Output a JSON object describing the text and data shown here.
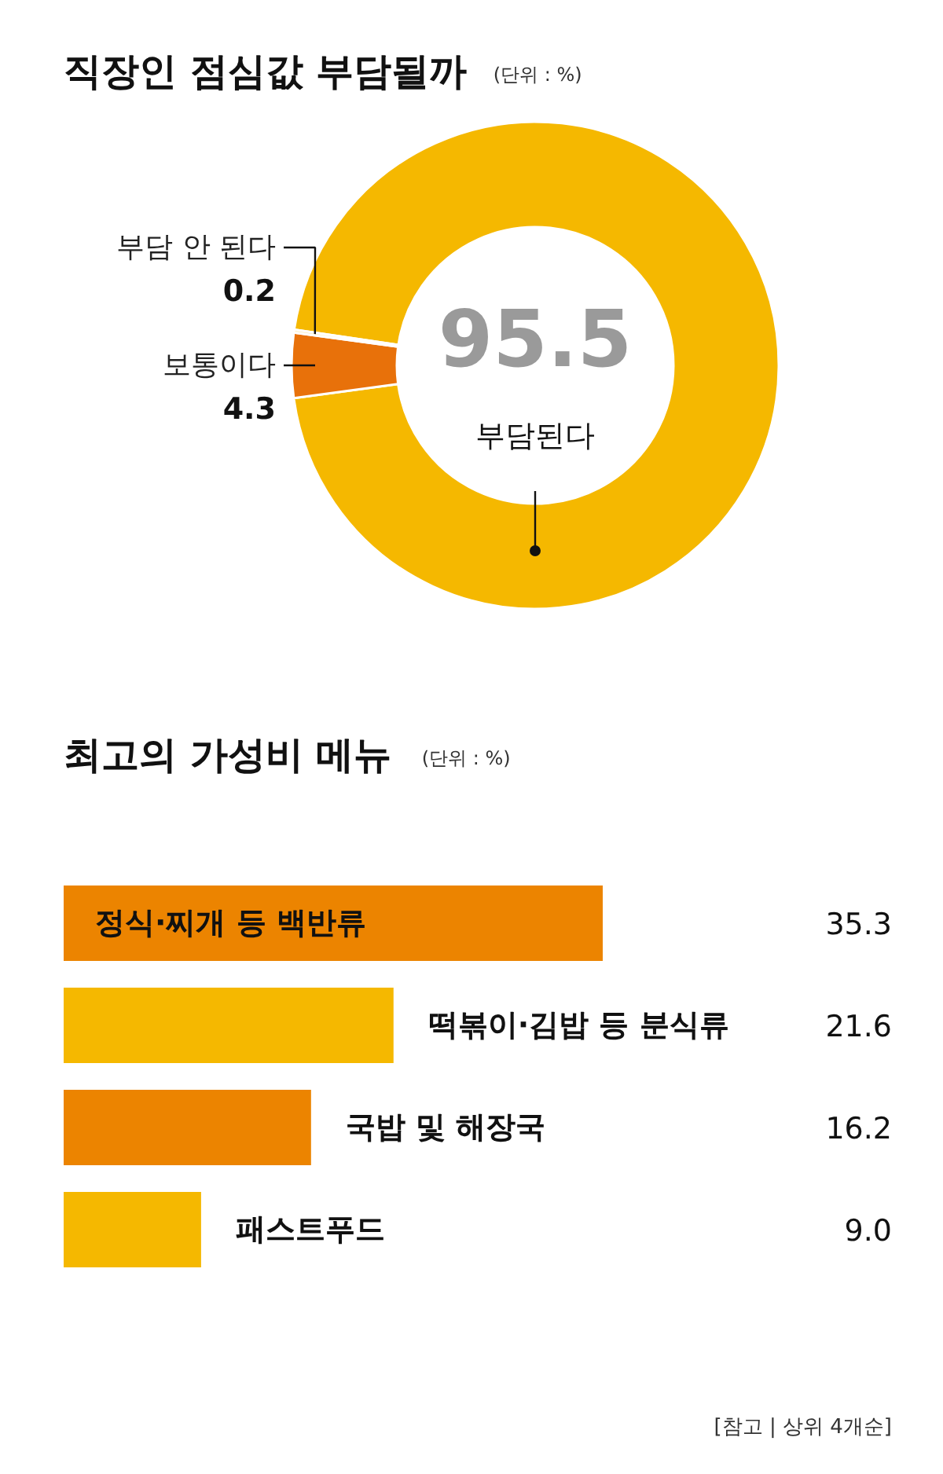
{
  "chart_data": [
    {
      "type": "donut",
      "title": "직장인 점심값 부담될까",
      "subtitle": "(단위 : %)",
      "categories": [
        "부담된다",
        "보통이다",
        "부담 안 된다"
      ],
      "values": [
        95.5,
        4.3,
        0.2
      ],
      "colors": [
        "#f5b800",
        "#e8710a",
        "#fbe9a6"
      ],
      "data_labels": true
    },
    {
      "type": "bar",
      "orientation": "horizontal",
      "title": "최고의 가성비 메뉴",
      "subtitle": "(단위 : %)",
      "categories": [
        "정식·찌개 등 백반류",
        "떡볶이·김밥 등 분식류",
        "국밥 및 해장국",
        "패스트푸드"
      ],
      "values": [
        35.3,
        21.6,
        16.2,
        9.0
      ],
      "colors": [
        "#ec8400",
        "#f5b800",
        "#ec8400",
        "#f5b800"
      ],
      "value_labels": [
        "35.3",
        "21.6",
        "16.2",
        "9.0"
      ],
      "annotations": [
        "[참고 | 상위 4개순]"
      ]
    }
  ]
}
